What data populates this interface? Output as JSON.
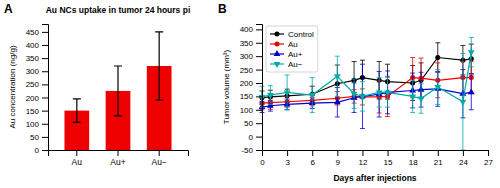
{
  "chart_data": [
    {
      "type": "bar",
      "title": "Au NCs uptake in tumor 24 hours pi",
      "annotations": [
        "A"
      ],
      "categories": [
        "Au",
        "Au+",
        "Au−"
      ],
      "values": [
        150,
        225,
        320
      ],
      "errors": [
        45,
        95,
        130
      ],
      "color": "#ee0000",
      "ylabel": "Au concentration (ng/g)",
      "ylim": [
        0,
        480
      ],
      "yticks": [
        0,
        50,
        100,
        150,
        200,
        250,
        300,
        350,
        400,
        450
      ],
      "grid": false
    },
    {
      "type": "line",
      "annotations": [
        "B"
      ],
      "xlabel": "Days after injections",
      "ylabel": "Tumor volume (mm³)",
      "xlim": [
        0,
        27
      ],
      "xticks": [
        0,
        3,
        6,
        9,
        12,
        15,
        18,
        21,
        24,
        27
      ],
      "ylim": [
        -50,
        420
      ],
      "yticks": [
        -50,
        0,
        50,
        100,
        150,
        200,
        250,
        300,
        350,
        400
      ],
      "legend": "upper left",
      "grid": false,
      "series": [
        {
          "name": "Control",
          "color": "#000000",
          "marker": "circle",
          "x": [
            0,
            1,
            3,
            6,
            9,
            11,
            12,
            14,
            15,
            18,
            19,
            21,
            24,
            25
          ],
          "values": [
            145,
            148,
            152,
            158,
            197,
            210,
            220,
            210,
            205,
            200,
            210,
            295,
            285,
            290
          ],
          "errors": [
            25,
            25,
            25,
            30,
            70,
            70,
            65,
            70,
            65,
            65,
            65,
            55,
            55,
            55
          ]
        },
        {
          "name": "Au",
          "color": "#ee0000",
          "marker": "circle",
          "x": [
            0,
            1,
            3,
            6,
            9,
            11,
            12,
            14,
            15,
            18,
            19,
            21,
            24,
            25
          ],
          "values": [
            125,
            127,
            130,
            135,
            143,
            150,
            148,
            148,
            150,
            220,
            218,
            210,
            220,
            220
          ],
          "errors": [
            25,
            25,
            20,
            20,
            25,
            25,
            30,
            60,
            75,
            75,
            75,
            65,
            60,
            60
          ]
        },
        {
          "name": "Au+",
          "color": "#0000cc",
          "marker": "triangle-up",
          "x": [
            0,
            1,
            3,
            6,
            9,
            11,
            12,
            14,
            15,
            18,
            19,
            21,
            24,
            25
          ],
          "values": [
            110,
            115,
            120,
            125,
            128,
            145,
            150,
            158,
            165,
            172,
            175,
            178,
            160,
            165
          ],
          "errors": [
            20,
            20,
            20,
            20,
            55,
            55,
            120,
            85,
            80,
            65,
            65,
            65,
            90,
            65
          ]
        },
        {
          "name": "Au−",
          "color": "#00aaaa",
          "marker": "triangle-down",
          "x": [
            0,
            1,
            3,
            6,
            9,
            11,
            12,
            14,
            15,
            18,
            19,
            21,
            24,
            25
          ],
          "values": [
            148,
            155,
            165,
            155,
            225,
            160,
            150,
            165,
            165,
            150,
            142,
            185,
            130,
            315
          ],
          "errors": [
            40,
            35,
            65,
            65,
            75,
            55,
            55,
            55,
            55,
            60,
            55,
            65,
            180,
            55
          ]
        }
      ]
    }
  ]
}
